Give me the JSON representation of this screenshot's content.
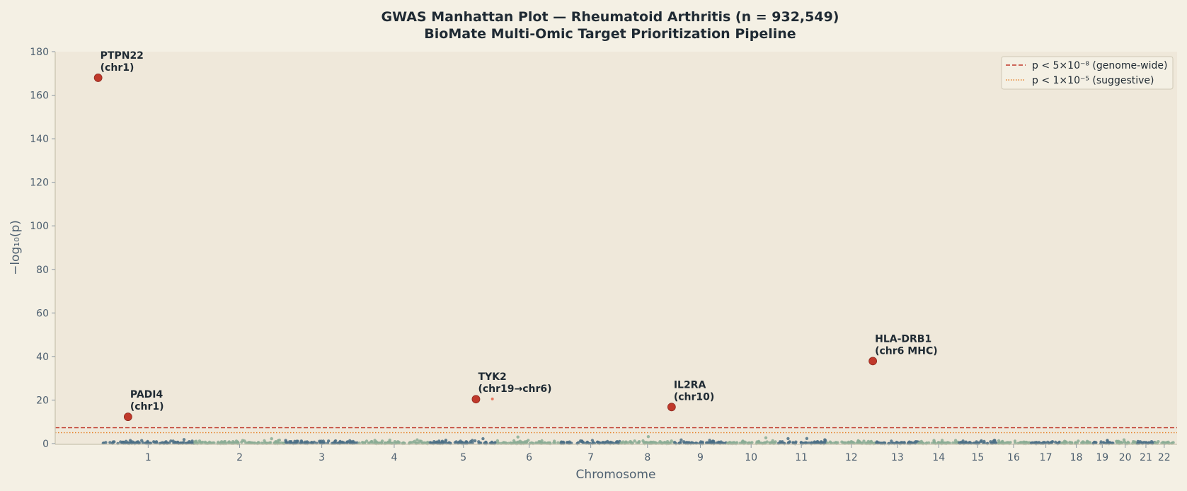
{
  "chart_data": {
    "type": "scatter",
    "title": "GWAS Manhattan Plot — Rheumatoid Arthritis (n = 932,549)",
    "subtitle": "BioMate Multi-Omic Target Prioritization Pipeline",
    "xlabel": "Chromosome",
    "ylabel": "−log₁₀(p)",
    "ylim": [
      0,
      180
    ],
    "yticks": [
      0,
      20,
      40,
      60,
      80,
      100,
      120,
      140,
      160,
      180
    ],
    "chromosomes": [
      {
        "label": "1",
        "start": 0,
        "end": 248
      },
      {
        "label": "2",
        "start": 248,
        "end": 490
      },
      {
        "label": "3",
        "start": 490,
        "end": 688
      },
      {
        "label": "4",
        "start": 688,
        "end": 878
      },
      {
        "label": "5",
        "start": 878,
        "end": 1059
      },
      {
        "label": "6",
        "start": 1059,
        "end": 1230
      },
      {
        "label": "7",
        "start": 1230,
        "end": 1389
      },
      {
        "label": "8",
        "start": 1389,
        "end": 1534
      },
      {
        "label": "9",
        "start": 1534,
        "end": 1672
      },
      {
        "label": "10",
        "start": 1672,
        "end": 1806
      },
      {
        "label": "11",
        "start": 1806,
        "end": 1941
      },
      {
        "label": "12",
        "start": 1941,
        "end": 2074
      },
      {
        "label": "13",
        "start": 2074,
        "end": 2188
      },
      {
        "label": "14",
        "start": 2188,
        "end": 2295
      },
      {
        "label": "15",
        "start": 2295,
        "end": 2397
      },
      {
        "label": "16",
        "start": 2397,
        "end": 2487
      },
      {
        "label": "17",
        "start": 2487,
        "end": 2570
      },
      {
        "label": "18",
        "start": 2570,
        "end": 2650
      },
      {
        "label": "19",
        "start": 2650,
        "end": 2709
      },
      {
        "label": "20",
        "start": 2709,
        "end": 2773
      },
      {
        "label": "21",
        "start": 2773,
        "end": 2820
      },
      {
        "label": "22",
        "start": 2820,
        "end": 2871
      }
    ],
    "xlim": [
      -125,
      2880
    ],
    "thresholds": [
      {
        "label": "p < 5×10⁻⁸ (genome-wide)",
        "value": 7.3,
        "color": "#c0392b",
        "style": "dashed"
      },
      {
        "label": "p < 1×10⁻⁵ (suggestive)",
        "value": 5.0,
        "color": "#e67e22",
        "style": "dotted"
      }
    ],
    "background_colors": [
      "#4a6f85",
      "#8aab94"
    ],
    "hit_color": "#c0392b",
    "hits": [
      {
        "line1": "PTPN22",
        "line2": "(chr1)",
        "x": -10,
        "y": 168
      },
      {
        "line1": "PADI4",
        "line2": "(chr1)",
        "x": 70,
        "y": 12.3
      },
      {
        "line1": "TYK2",
        "line2": "(chr19→chr6)",
        "x": 1002,
        "y": 20.4
      },
      {
        "line1": "IL2RA",
        "line2": "(chr10)",
        "x": 1526,
        "y": 16.8
      },
      {
        "line1": "HLA-DRB1",
        "line2": "(chr6 MHC)",
        "x": 2065,
        "y": 37.9
      }
    ],
    "extra_point": {
      "x": 1046,
      "y": 20.5
    },
    "legend_position": "top-right"
  }
}
